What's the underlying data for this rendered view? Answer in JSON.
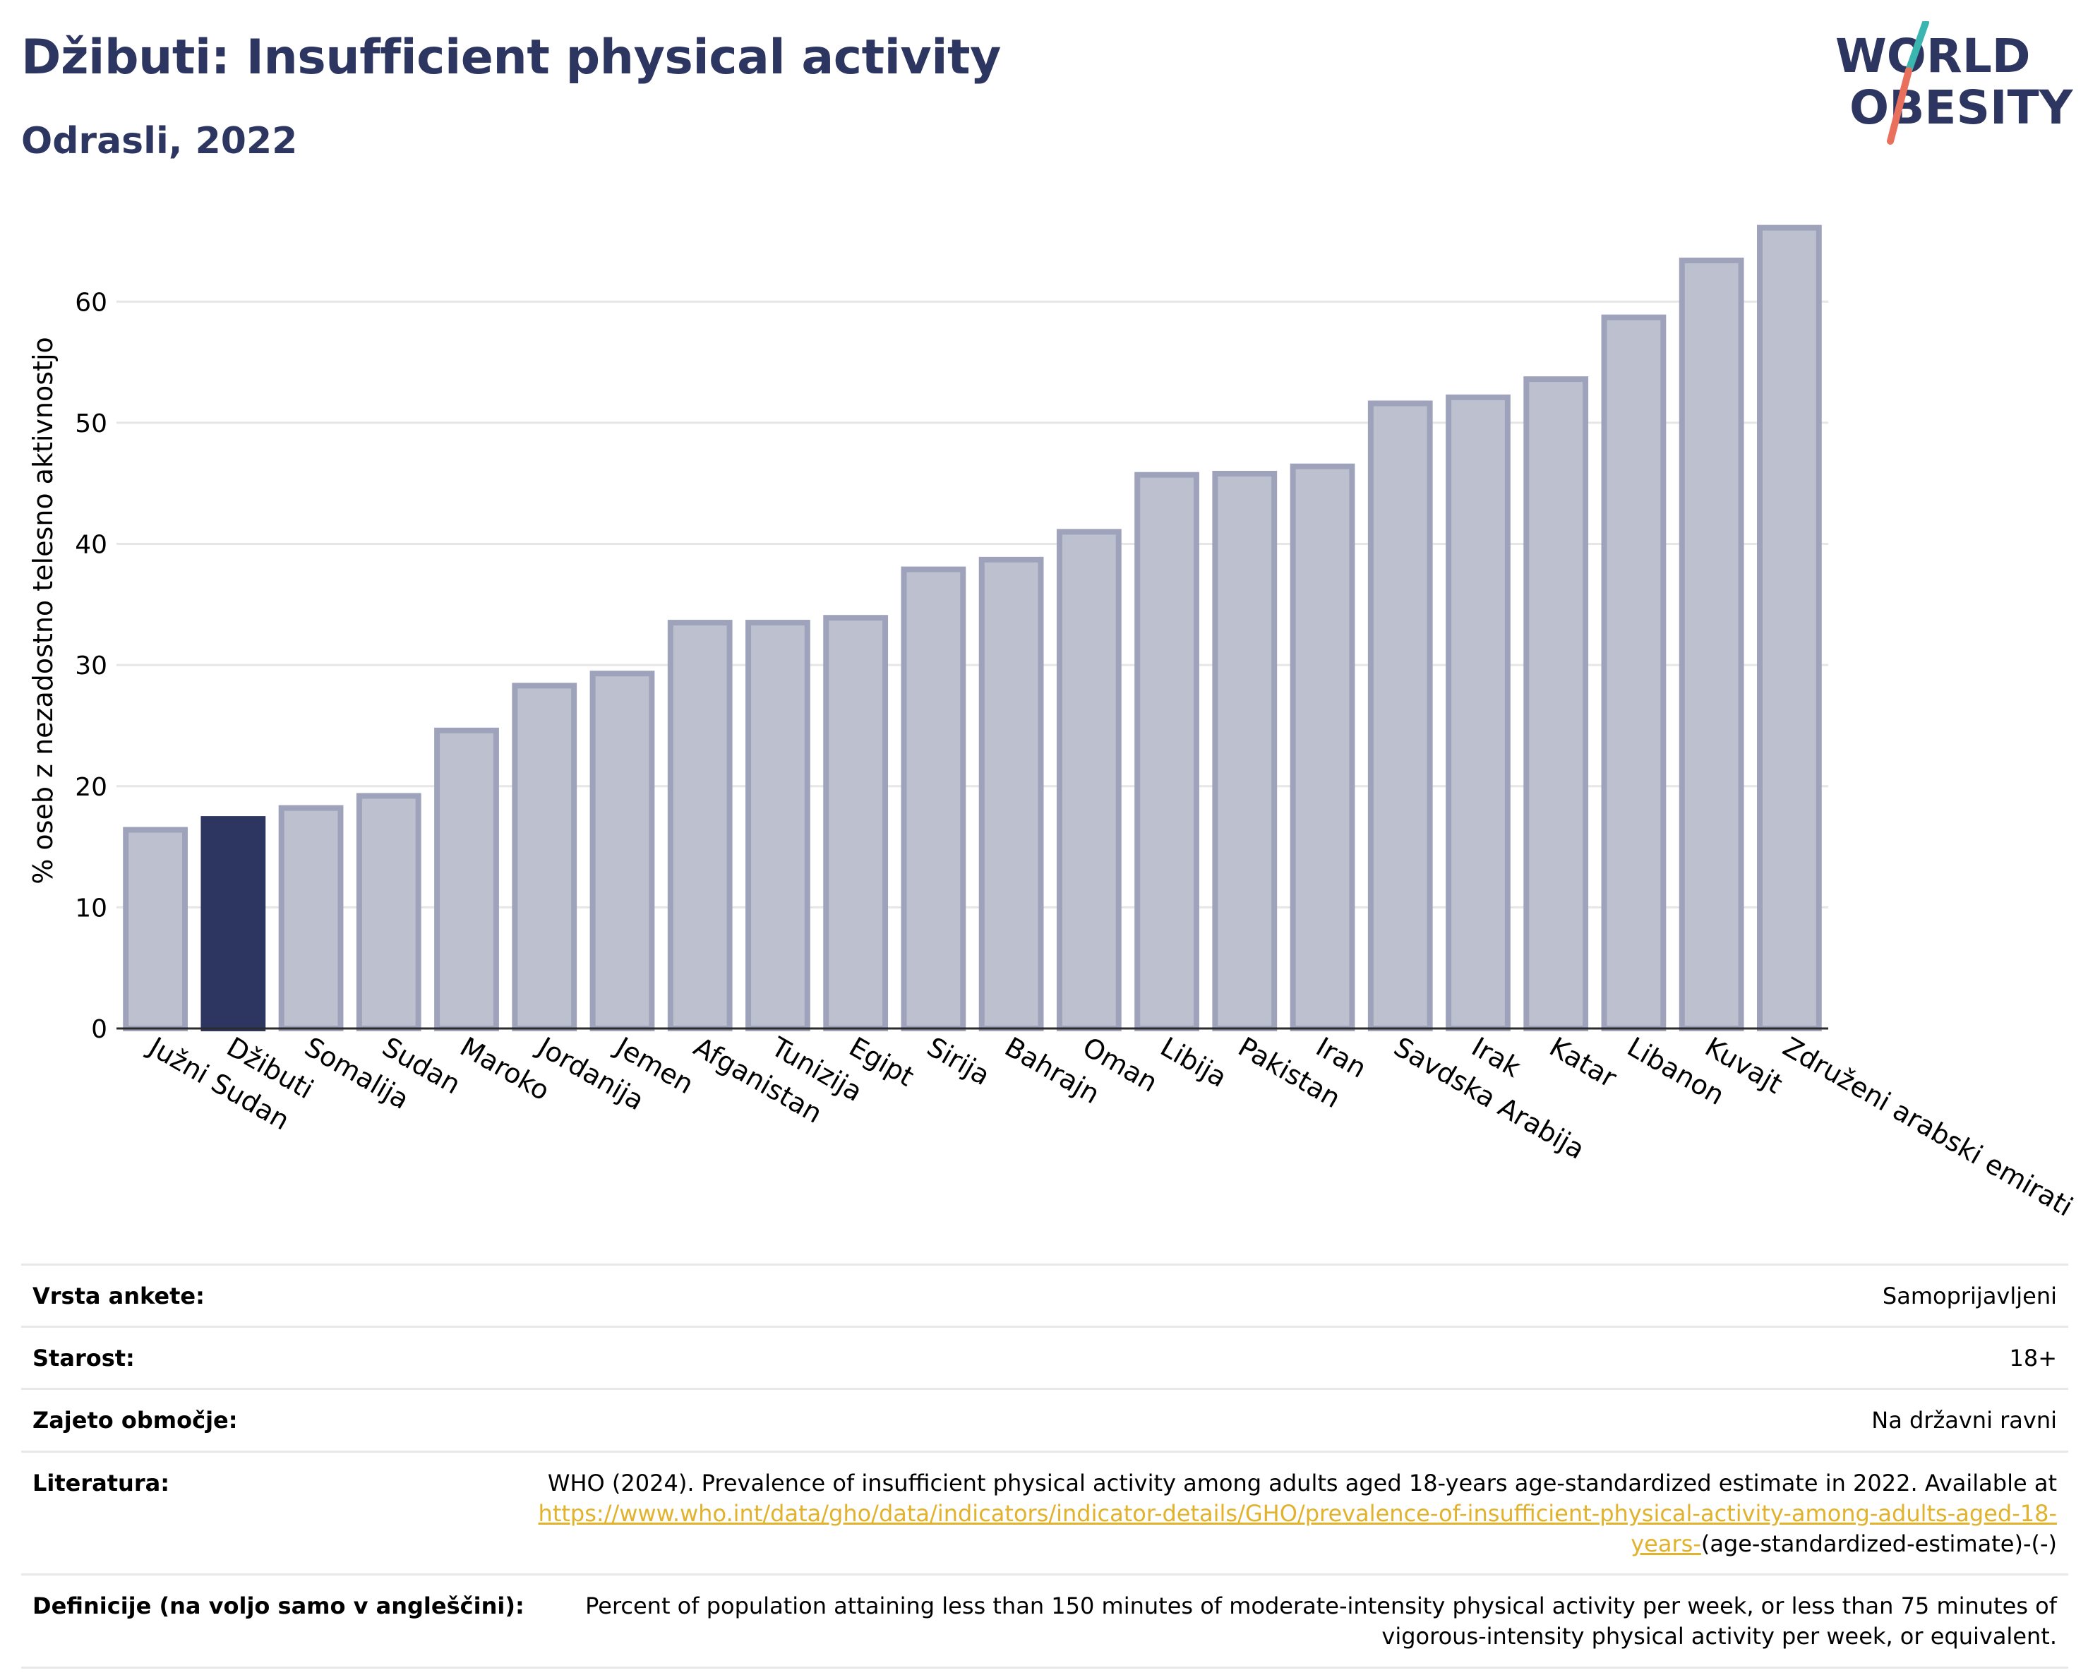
{
  "header": {
    "title": "Džibuti: Insufficient physical activity",
    "subtitle": "Odrasli, 2022"
  },
  "logo": {
    "line1": "WORLD",
    "line2": "OBESITY",
    "colors": {
      "text": "#2d3561",
      "slash_top": "#3ab5b0",
      "slash_bottom": "#e8705c"
    }
  },
  "colors": {
    "highlight": "#2d3561",
    "bar": "#bcc0cf",
    "bar_edge": "#9ea3bb",
    "grid": "#e6e6e6"
  },
  "chart_data": {
    "type": "bar",
    "title": "",
    "xlabel": "",
    "ylabel": "% oseb z nezadostno telesno aktivnostjo",
    "ylim": [
      0,
      68
    ],
    "yticks": [
      0,
      10,
      20,
      30,
      40,
      50,
      60
    ],
    "grid": true,
    "highlight_category": "Džibuti",
    "categories": [
      "Južni Sudan",
      "Džibuti",
      "Somalija",
      "Sudan",
      "Maroko",
      "Jordanija",
      "Jemen",
      "Afganistan",
      "Tunizija",
      "Egipt",
      "Sirija",
      "Bahrajn",
      "Oman",
      "Libija",
      "Pakistan",
      "Iran",
      "Savdska Arabija",
      "Irak",
      "Katar",
      "Libanon",
      "Kuvajt",
      "Združeni arabski emirati"
    ],
    "values": [
      16.4,
      17.3,
      18.2,
      19.2,
      24.6,
      28.3,
      29.3,
      33.5,
      33.5,
      33.9,
      37.9,
      38.7,
      41.0,
      45.7,
      45.8,
      46.4,
      51.6,
      52.1,
      53.6,
      58.7,
      63.4,
      66.1
    ]
  },
  "meta": {
    "survey_type": {
      "label": "Vrsta ankete:",
      "value": "Samoprijavljeni"
    },
    "age": {
      "label": "Starost:",
      "value": "18+"
    },
    "coverage": {
      "label": "Zajeto območje:",
      "value": "Na državni ravni"
    },
    "reference": {
      "label": "Literatura:",
      "text": "WHO (2024). Prevalence of insufficient physical activity among adults aged 18-years age-standardized estimate in 2022. Available at",
      "link": "https://www.who.int/data/gho/data/indicators/indicator-details/GHO/prevalence-of-insufficient-physical-activity-among-adults-aged-18-years-",
      "suffix": "(age-standardized-estimate)-(-)"
    },
    "definition": {
      "label": "Definicije (na voljo samo v angleščini):",
      "value": "Percent of population attaining less than 150 minutes of moderate-intensity physical activity per week, or less than 75 minutes of vigorous-intensity physical activity per week, or equivalent."
    }
  }
}
